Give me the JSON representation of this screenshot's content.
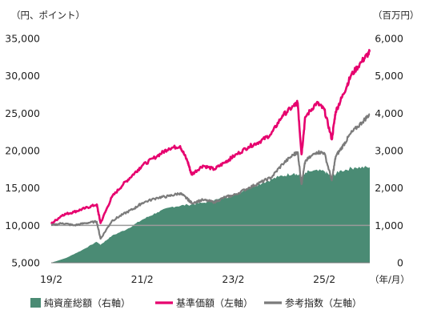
{
  "chart_data": {
    "type": "line",
    "left_axis": {
      "unit_label": "（円、ポイント）",
      "ylim": [
        5000,
        35000
      ],
      "ticks": [
        "35,000",
        "30,000",
        "25,000",
        "20,000",
        "15,000",
        "10,000",
        "5,000"
      ],
      "tick_values": [
        35000,
        30000,
        25000,
        20000,
        15000,
        10000,
        5000
      ]
    },
    "right_axis": {
      "unit_label": "（百万円）",
      "ylim": [
        0,
        6000
      ],
      "ticks": [
        "6,000",
        "5,000",
        "4,000",
        "3,000",
        "2,000",
        "1,000",
        "0"
      ],
      "tick_values": [
        6000,
        5000,
        4000,
        3000,
        2000,
        1000,
        0
      ]
    },
    "x_axis": {
      "unit_label": "（年/月）",
      "ticks": [
        "19/2",
        "21/2",
        "23/2",
        "25/2"
      ],
      "tick_dates": [
        "2019-02",
        "2021-02",
        "2023-02",
        "2025-02"
      ],
      "range": [
        "2019-02",
        "2026-02"
      ]
    },
    "reference_line": {
      "axis": "left",
      "value": 10000
    },
    "colors": {
      "net_assets": "#4a8b74",
      "nav": "#e6006e",
      "index": "#7b7b7b",
      "axis": "#777777",
      "reference": "#9a9a9a"
    },
    "series": [
      {
        "name": "純資産総額（右軸）",
        "kind": "area",
        "axis": "right",
        "color": "#4a8b74",
        "points": [
          [
            "2019-02",
            0
          ],
          [
            "2019-06",
            130
          ],
          [
            "2019-10",
            330
          ],
          [
            "2020-02",
            560
          ],
          [
            "2020-03",
            480
          ],
          [
            "2020-06",
            720
          ],
          [
            "2020-10",
            900
          ],
          [
            "2021-02",
            1150
          ],
          [
            "2021-06",
            1350
          ],
          [
            "2021-10",
            1500
          ],
          [
            "2022-02",
            1550
          ],
          [
            "2022-06",
            1600
          ],
          [
            "2022-10",
            1700
          ],
          [
            "2023-02",
            1800
          ],
          [
            "2023-06",
            2000
          ],
          [
            "2023-10",
            2150
          ],
          [
            "2024-02",
            2300
          ],
          [
            "2024-06",
            2400
          ],
          [
            "2024-08",
            2300
          ],
          [
            "2024-10",
            2450
          ],
          [
            "2025-02",
            2450
          ],
          [
            "2025-04",
            2300
          ],
          [
            "2025-06",
            2450
          ],
          [
            "2025-10",
            2550
          ],
          [
            "2026-02",
            2550
          ]
        ]
      },
      {
        "name": "基準価額（左軸）",
        "kind": "line",
        "axis": "left",
        "color": "#e6006e",
        "points": [
          [
            "2019-02",
            10200
          ],
          [
            "2019-05",
            11400
          ],
          [
            "2019-08",
            11800
          ],
          [
            "2019-11",
            12300
          ],
          [
            "2020-02",
            12800
          ],
          [
            "2020-03",
            10300
          ],
          [
            "2020-06",
            13800
          ],
          [
            "2020-09",
            15500
          ],
          [
            "2020-12",
            17000
          ],
          [
            "2021-02",
            18000
          ],
          [
            "2021-06",
            19300
          ],
          [
            "2021-09",
            20300
          ],
          [
            "2021-12",
            20600
          ],
          [
            "2022-02",
            18500
          ],
          [
            "2022-03",
            16800
          ],
          [
            "2022-06",
            18000
          ],
          [
            "2022-09",
            17500
          ],
          [
            "2022-12",
            18500
          ],
          [
            "2023-02",
            19200
          ],
          [
            "2023-06",
            20500
          ],
          [
            "2023-09",
            21200
          ],
          [
            "2023-12",
            22200
          ],
          [
            "2024-03",
            24700
          ],
          [
            "2024-06",
            26000
          ],
          [
            "2024-07",
            26400
          ],
          [
            "2024-08",
            19500
          ],
          [
            "2024-09",
            24500
          ],
          [
            "2024-12",
            26400
          ],
          [
            "2025-02",
            25500
          ],
          [
            "2025-04",
            21500
          ],
          [
            "2025-05",
            25200
          ],
          [
            "2025-07",
            27500
          ],
          [
            "2025-09",
            30000
          ],
          [
            "2025-12",
            32000
          ],
          [
            "2026-02",
            33200
          ]
        ]
      },
      {
        "name": "参考指数（左軸）",
        "kind": "line",
        "axis": "left",
        "color": "#7b7b7b",
        "points": [
          [
            "2019-02",
            10000
          ],
          [
            "2019-05",
            10300
          ],
          [
            "2019-08",
            10000
          ],
          [
            "2019-11",
            10300
          ],
          [
            "2020-02",
            10500
          ],
          [
            "2020-03",
            8200
          ],
          [
            "2020-06",
            10600
          ],
          [
            "2020-09",
            11500
          ],
          [
            "2020-12",
            12300
          ],
          [
            "2021-02",
            13000
          ],
          [
            "2021-06",
            13700
          ],
          [
            "2021-09",
            13900
          ],
          [
            "2021-12",
            14300
          ],
          [
            "2022-02",
            13500
          ],
          [
            "2022-03",
            13000
          ],
          [
            "2022-06",
            13400
          ],
          [
            "2022-09",
            13100
          ],
          [
            "2022-12",
            13800
          ],
          [
            "2023-02",
            14000
          ],
          [
            "2023-06",
            15000
          ],
          [
            "2023-09",
            15700
          ],
          [
            "2023-12",
            16400
          ],
          [
            "2024-03",
            18200
          ],
          [
            "2024-06",
            19500
          ],
          [
            "2024-07",
            19800
          ],
          [
            "2024-08",
            15500
          ],
          [
            "2024-09",
            18600
          ],
          [
            "2024-12",
            19800
          ],
          [
            "2025-02",
            19700
          ],
          [
            "2025-04",
            16000
          ],
          [
            "2025-05",
            19200
          ],
          [
            "2025-07",
            20700
          ],
          [
            "2025-09",
            22300
          ],
          [
            "2025-12",
            23800
          ],
          [
            "2026-02",
            24900
          ]
        ]
      }
    ],
    "legend": {
      "placement": "bottom",
      "items": [
        "純資産総額（右軸）",
        "基準価額（左軸）",
        "参考指数（左軸）"
      ]
    },
    "grid": false
  }
}
